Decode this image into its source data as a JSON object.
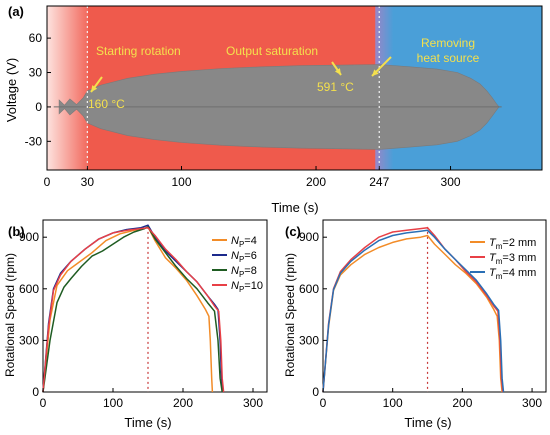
{
  "chart_data": [
    {
      "panel": "(a)",
      "type": "area",
      "xlabel": "Time (s)",
      "ylabel": "Voltage (V)",
      "xlim": [
        0,
        368
      ],
      "ylim": [
        -55,
        88
      ],
      "xticks": [
        0,
        30,
        100,
        200,
        247,
        300
      ],
      "yticks": [
        -30,
        0,
        30,
        60
      ],
      "grid": false,
      "regions": [
        {
          "label": "Starting rotation",
          "x_start": 0,
          "x_end": 30,
          "color": "#f7a8a0"
        },
        {
          "label": "Output saturation",
          "x_start": 30,
          "x_end": 247,
          "color": "#ef5a4c"
        },
        {
          "label": "Removing heat source",
          "x_start": 247,
          "x_end": 368,
          "color": "#4a9fd8"
        }
      ],
      "annotations": [
        {
          "text": "Starting rotation",
          "x": 30
        },
        {
          "text": "160 °C",
          "x": 30
        },
        {
          "text": "Output saturation",
          "x": 247
        },
        {
          "text": "591 °C",
          "x": 247
        },
        {
          "text": "Removing",
          "x": 300
        },
        {
          "text": "heat source",
          "x": 300
        }
      ],
      "envelope": {
        "x": [
          9,
          13,
          17,
          22,
          27,
          30,
          40,
          60,
          80,
          100,
          130,
          160,
          190,
          220,
          247,
          270,
          290,
          305,
          315,
          322,
          327,
          331,
          334,
          336
        ],
        "upper": [
          6,
          1.5,
          7,
          2,
          8,
          14,
          19,
          25,
          28.5,
          31,
          33.5,
          35,
          36,
          36.5,
          37,
          35,
          33,
          30,
          25,
          20,
          14,
          8,
          3,
          0
        ],
        "lower": [
          -6,
          -1.5,
          -7,
          -2,
          -8,
          -14,
          -19,
          -25,
          -28.5,
          -31,
          -33.5,
          -35,
          -36,
          -36.5,
          -37,
          -35,
          -33,
          -30,
          -25,
          -20,
          -14,
          -8,
          -3,
          0
        ]
      },
      "envelope_color": "#888888"
    },
    {
      "panel": "(b)",
      "type": "line",
      "xlabel": "Time (s)",
      "ylabel": "Rotational Speed (rpm)",
      "xlim": [
        0,
        320
      ],
      "ylim": [
        0,
        1000
      ],
      "xticks": [
        0,
        100,
        200,
        300
      ],
      "yticks": [
        0,
        300,
        600,
        900
      ],
      "legend_position": "top-right",
      "grid": false,
      "vline": {
        "x": 150,
        "color": "#c83a3a"
      },
      "series": [
        {
          "name": "NP=4",
          "label_base": "N",
          "label_sub": "P",
          "label_rest": "=4",
          "color": "#f28c28",
          "x": [
            0,
            10,
            20,
            35,
            50,
            70,
            90,
            110,
            130,
            145,
            150,
            160,
            175,
            190,
            205,
            220,
            232,
            237,
            239,
            241,
            242
          ],
          "y": [
            0,
            420,
            620,
            705,
            750,
            810,
            880,
            920,
            940,
            950,
            960,
            880,
            780,
            720,
            650,
            560,
            480,
            440,
            300,
            80,
            0
          ]
        },
        {
          "name": "NP=6",
          "label_base": "N",
          "label_sub": "P",
          "label_rest": "=6",
          "color": "#1c2a8c",
          "x": [
            0,
            8,
            15,
            25,
            40,
            60,
            80,
            100,
            120,
            140,
            150,
            160,
            175,
            190,
            205,
            220,
            235,
            245,
            250,
            253,
            255,
            257
          ],
          "y": [
            0,
            400,
            600,
            690,
            760,
            830,
            890,
            925,
            945,
            955,
            970,
            900,
            820,
            760,
            700,
            640,
            560,
            510,
            480,
            300,
            80,
            0
          ]
        },
        {
          "name": "NP=8",
          "label_base": "N",
          "label_sub": "P",
          "label_rest": "=8",
          "color": "#1f5c22",
          "x": [
            0,
            10,
            20,
            30,
            40,
            55,
            70,
            85,
            100,
            115,
            130,
            145,
            150,
            160,
            175,
            190,
            205,
            220,
            235,
            245,
            250,
            253,
            256
          ],
          "y": [
            0,
            300,
            520,
            610,
            660,
            730,
            790,
            820,
            860,
            900,
            930,
            950,
            960,
            890,
            810,
            730,
            660,
            600,
            520,
            470,
            300,
            80,
            0
          ]
        },
        {
          "name": "NP=10",
          "label_base": "N",
          "label_sub": "P",
          "label_rest": "=10",
          "color": "#e84046",
          "x": [
            0,
            8,
            15,
            25,
            40,
            60,
            80,
            100,
            120,
            140,
            150,
            160,
            175,
            190,
            205,
            220,
            235,
            245,
            251,
            254,
            256,
            258
          ],
          "y": [
            0,
            380,
            590,
            680,
            760,
            830,
            890,
            925,
            940,
            950,
            955,
            910,
            830,
            770,
            700,
            640,
            560,
            500,
            470,
            300,
            80,
            0
          ]
        }
      ]
    },
    {
      "panel": "(c)",
      "type": "line",
      "xlabel": "Time (s)",
      "ylabel": "Rotational Speed (rpm)",
      "xlim": [
        0,
        320
      ],
      "ylim": [
        0,
        1000
      ],
      "xticks": [
        0,
        100,
        200,
        300
      ],
      "yticks": [
        0,
        300,
        600,
        900
      ],
      "legend_position": "top-right",
      "grid": false,
      "vline": {
        "x": 150,
        "color": "#c83a3a"
      },
      "series": [
        {
          "name": "Tm=2 mm",
          "label_base": "T",
          "label_sub": "m",
          "label_rest": "=2 mm",
          "color": "#f28c28",
          "x": [
            0,
            8,
            15,
            25,
            40,
            60,
            80,
            100,
            120,
            140,
            150,
            160,
            175,
            190,
            205,
            220,
            235,
            245,
            250,
            253,
            255,
            257
          ],
          "y": [
            0,
            380,
            590,
            680,
            740,
            800,
            840,
            870,
            890,
            900,
            910,
            860,
            800,
            740,
            690,
            630,
            550,
            480,
            440,
            300,
            80,
            0
          ]
        },
        {
          "name": "Tm=3 mm",
          "label_base": "T",
          "label_sub": "m",
          "label_rest": "=3 mm",
          "color": "#e84046",
          "x": [
            0,
            8,
            15,
            25,
            40,
            60,
            80,
            100,
            120,
            140,
            150,
            160,
            175,
            190,
            205,
            220,
            235,
            245,
            251,
            254,
            256,
            258
          ],
          "y": [
            0,
            400,
            600,
            700,
            770,
            840,
            900,
            930,
            940,
            950,
            955,
            910,
            830,
            770,
            700,
            640,
            560,
            500,
            470,
            300,
            80,
            0
          ]
        },
        {
          "name": "Tm=4 mm",
          "label_base": "T",
          "label_sub": "m",
          "label_rest": "=4 mm",
          "color": "#2a6fb5",
          "x": [
            0,
            8,
            15,
            25,
            40,
            60,
            80,
            100,
            120,
            140,
            150,
            160,
            175,
            190,
            205,
            220,
            235,
            245,
            252,
            255,
            257,
            259
          ],
          "y": [
            0,
            390,
            595,
            690,
            760,
            825,
            880,
            910,
            925,
            935,
            940,
            900,
            830,
            770,
            710,
            650,
            570,
            510,
            475,
            300,
            80,
            0
          ]
        }
      ]
    }
  ]
}
